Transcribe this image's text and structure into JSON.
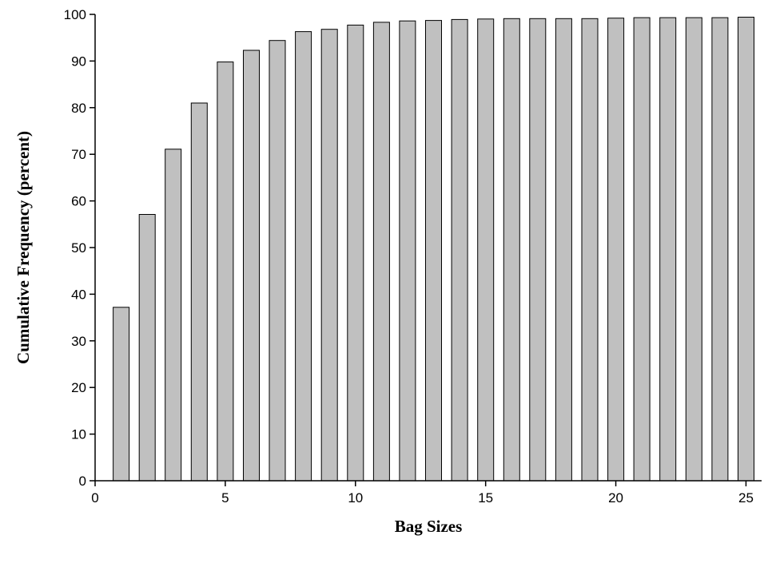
{
  "chart_data": {
    "type": "bar",
    "title": "",
    "xlabel": "Bag Sizes",
    "ylabel": "Cumulative Frequency (percent)",
    "x": [
      1,
      2,
      3,
      4,
      5,
      6,
      7,
      8,
      9,
      10,
      11,
      12,
      13,
      14,
      15,
      16,
      17,
      18,
      19,
      20,
      21,
      22,
      23,
      24,
      25
    ],
    "values": [
      37.2,
      57.1,
      71.1,
      81.0,
      89.8,
      92.3,
      94.4,
      96.3,
      96.8,
      97.7,
      98.3,
      98.6,
      98.7,
      98.9,
      99.0,
      99.1,
      99.1,
      99.1,
      99.1,
      99.2,
      99.3,
      99.3,
      99.3,
      99.3,
      99.4
    ],
    "xlim": [
      0,
      25.6
    ],
    "ylim": [
      0,
      100
    ],
    "xticks": [
      0,
      5,
      10,
      15,
      20,
      25
    ],
    "yticks": [
      0,
      10,
      20,
      30,
      40,
      50,
      60,
      70,
      80,
      90,
      100
    ],
    "bar_color": "#c0c0c0",
    "edge_color": "#000000",
    "grid": false,
    "legend": "none"
  }
}
